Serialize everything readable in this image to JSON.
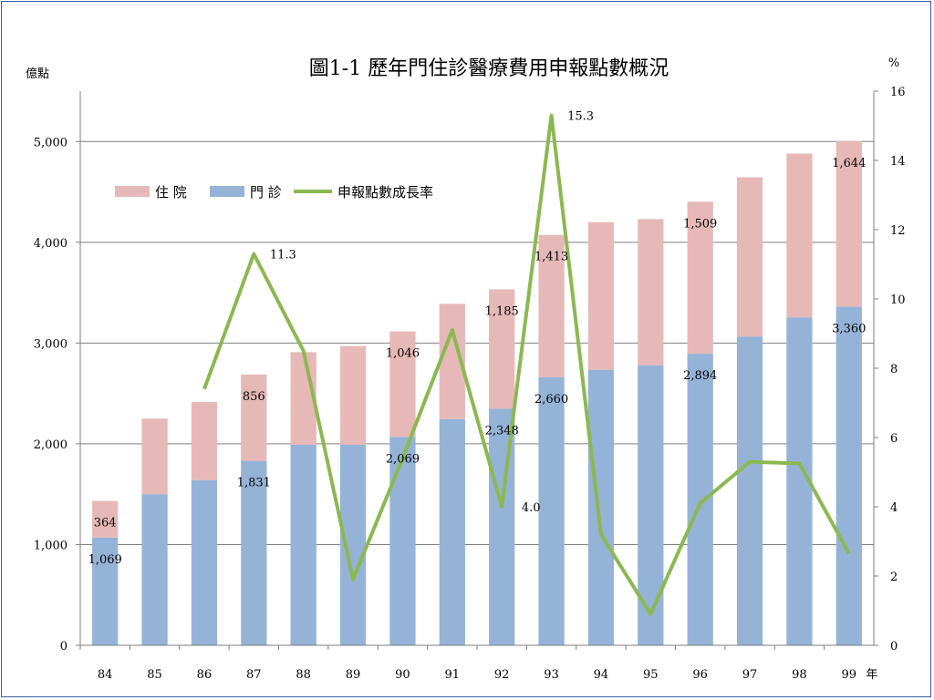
{
  "chart_data": {
    "type": "bar",
    "title": "圖1-1 歷年門住診醫療費用申報點數概況",
    "left_unit": "億點",
    "right_unit": "%",
    "x_unit": "年",
    "categories": [
      "84",
      "85",
      "86",
      "87",
      "88",
      "89",
      "90",
      "91",
      "92",
      "93",
      "94",
      "95",
      "96",
      "97",
      "98",
      "99"
    ],
    "ylim_left": [
      0,
      5500
    ],
    "yticks_left": [
      0,
      1000,
      2000,
      3000,
      4000,
      5000
    ],
    "yticks_left_labels": [
      "0",
      "1,000",
      "2,000",
      "3,000",
      "4,000",
      "5,000"
    ],
    "ylim_right": [
      0,
      16
    ],
    "yticks_right": [
      0,
      2,
      4,
      6,
      8,
      10,
      12,
      14,
      16
    ],
    "yticks_right_labels": [
      "0",
      "2",
      "4",
      "6",
      "8",
      "10",
      "12",
      "14",
      "16"
    ],
    "grid": true,
    "legend_position": "upper-left",
    "stacked": true,
    "series": [
      {
        "name": "門 診",
        "color": "#95b3d7",
        "values": [
          1069,
          1500,
          1640,
          1831,
          1990,
          1990,
          2069,
          2245,
          2348,
          2660,
          2735,
          2780,
          2894,
          3065,
          3255,
          3360
        ]
      },
      {
        "name": "住 院",
        "color": "#e6b9b8",
        "values": [
          364,
          750,
          775,
          856,
          920,
          980,
          1046,
          1145,
          1185,
          1413,
          1465,
          1450,
          1509,
          1580,
          1625,
          1644
        ]
      },
      {
        "name": "申報點數成長率",
        "color": "#8cb852",
        "axis": "right",
        "type": "line",
        "values": [
          null,
          null,
          7.4,
          11.3,
          8.5,
          1.9,
          5.4,
          9.1,
          4.0,
          15.3,
          3.2,
          0.9,
          4.1,
          5.3,
          5.25,
          2.65
        ]
      }
    ],
    "data_labels": [
      {
        "series": 1,
        "index": 0,
        "text": "364"
      },
      {
        "series": 0,
        "index": 0,
        "text": "1,069"
      },
      {
        "series": 1,
        "index": 3,
        "text": "856"
      },
      {
        "series": 0,
        "index": 3,
        "text": "1,831"
      },
      {
        "series": 1,
        "index": 6,
        "text": "1,046"
      },
      {
        "series": 0,
        "index": 6,
        "text": "2,069"
      },
      {
        "series": 1,
        "index": 8,
        "text": "1,185"
      },
      {
        "series": 0,
        "index": 8,
        "text": "2,348"
      },
      {
        "series": 1,
        "index": 9,
        "text": "1,413"
      },
      {
        "series": 0,
        "index": 9,
        "text": "2,660"
      },
      {
        "series": 1,
        "index": 12,
        "text": "1,509"
      },
      {
        "series": 0,
        "index": 12,
        "text": "2,894"
      },
      {
        "series": 1,
        "index": 15,
        "text": "1,644"
      },
      {
        "series": 0,
        "index": 15,
        "text": "3,360"
      },
      {
        "series": 2,
        "index": 3,
        "text": "11.3"
      },
      {
        "series": 2,
        "index": 8,
        "text": "4.0"
      },
      {
        "series": 2,
        "index": 9,
        "text": "15.3"
      }
    ]
  }
}
